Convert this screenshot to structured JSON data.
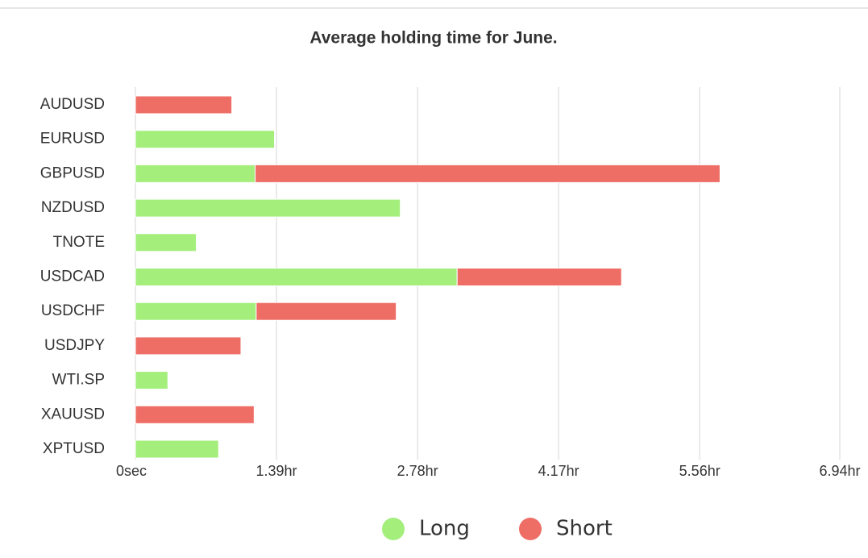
{
  "chart_data": {
    "type": "stacked_barh",
    "title": "Average holding time for June.",
    "categories": [
      "AUDUSD",
      "EURUSD",
      "GBPUSD",
      "NZDUSD",
      "TNOTE",
      "USDCAD",
      "USDCHF",
      "USDJPY",
      "WTI.SP",
      "XAUUSD",
      "XPTUSD"
    ],
    "series": [
      {
        "name": "Long",
        "color": "#a4ee7c",
        "values": [
          null,
          1.37,
          1.18,
          2.61,
          0.6,
          3.17,
          1.19,
          null,
          0.32,
          null,
          0.82
        ]
      },
      {
        "name": "Short",
        "color": "#ee6e66",
        "values": [
          0.95,
          null,
          4.58,
          null,
          null,
          1.62,
          1.38,
          1.04,
          null,
          1.17,
          null
        ]
      }
    ],
    "xlim": [
      0,
      6.94
    ],
    "xticks": [
      {
        "value": 0,
        "label": "0sec"
      },
      {
        "value": 1.39,
        "label": "1.39hr"
      },
      {
        "value": 2.78,
        "label": "2.78hr"
      },
      {
        "value": 4.17,
        "label": "4.17hr"
      },
      {
        "value": 5.56,
        "label": "5.56hr"
      },
      {
        "value": 6.94,
        "label": "6.94hr"
      }
    ],
    "grid": true,
    "legend": "bottom"
  }
}
